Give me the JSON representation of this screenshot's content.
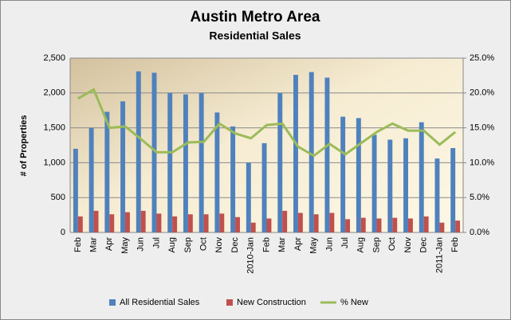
{
  "chart_data": {
    "type": "bar-line",
    "title": "Austin Metro Area",
    "subtitle": "Residential Sales",
    "y_label": "# of Properties",
    "categories": [
      "Feb",
      "Mar",
      "Apr",
      "May",
      "Jun",
      "Jul",
      "Aug",
      "Sep",
      "Oct",
      "Nov",
      "Dec",
      "2010-Jan",
      "Feb",
      "Mar",
      "Apr",
      "May",
      "Jun",
      "Jul",
      "Aug",
      "Sep",
      "Oct",
      "Nov",
      "Dec",
      "2011-Jan",
      "Feb"
    ],
    "series": [
      {
        "name": "All Residential Sales",
        "type": "bar",
        "color": "#4f81bd",
        "values": [
          1200,
          1500,
          1730,
          1880,
          2310,
          2290,
          2000,
          1980,
          2000,
          1720,
          1520,
          1000,
          1280,
          2000,
          2260,
          2300,
          2220,
          1660,
          1640,
          1400,
          1330,
          1350,
          1580,
          1060,
          1210
        ]
      },
      {
        "name": "New Construction",
        "type": "bar",
        "color": "#c0504d",
        "values": [
          230,
          310,
          260,
          290,
          310,
          270,
          230,
          260,
          260,
          270,
          220,
          140,
          200,
          310,
          280,
          260,
          280,
          190,
          210,
          200,
          210,
          200,
          230,
          140,
          170
        ]
      },
      {
        "name": "% New",
        "type": "line",
        "axis": "y2",
        "color": "#9bbb59",
        "values": [
          19.2,
          20.5,
          15.0,
          15.2,
          13.4,
          11.5,
          11.5,
          12.9,
          13.0,
          15.6,
          14.2,
          13.5,
          15.4,
          15.6,
          12.3,
          11.0,
          12.7,
          11.2,
          12.8,
          14.4,
          15.6,
          14.6,
          14.6,
          12.6,
          14.4
        ]
      }
    ],
    "ylim": [
      0,
      2500
    ],
    "yticks": [
      0,
      500,
      {
        "value": 1000,
        "label": "1,000"
      },
      {
        "value": 1500,
        "label": "1,500"
      },
      {
        "value": 2000,
        "label": "2,000"
      },
      {
        "value": 2500,
        "label": "2,500"
      }
    ],
    "y2lim": [
      0,
      25
    ],
    "y2ticks": [
      {
        "value": 0,
        "label": "0.0%"
      },
      {
        "value": 5,
        "label": "5.0%"
      },
      {
        "value": 10,
        "label": "10.0%"
      },
      {
        "value": 15,
        "label": "15.0%"
      },
      {
        "value": 20,
        "label": "20.0%"
      },
      {
        "value": 25,
        "label": "25.0%"
      }
    ],
    "grid": true,
    "legend": "bottom"
  }
}
